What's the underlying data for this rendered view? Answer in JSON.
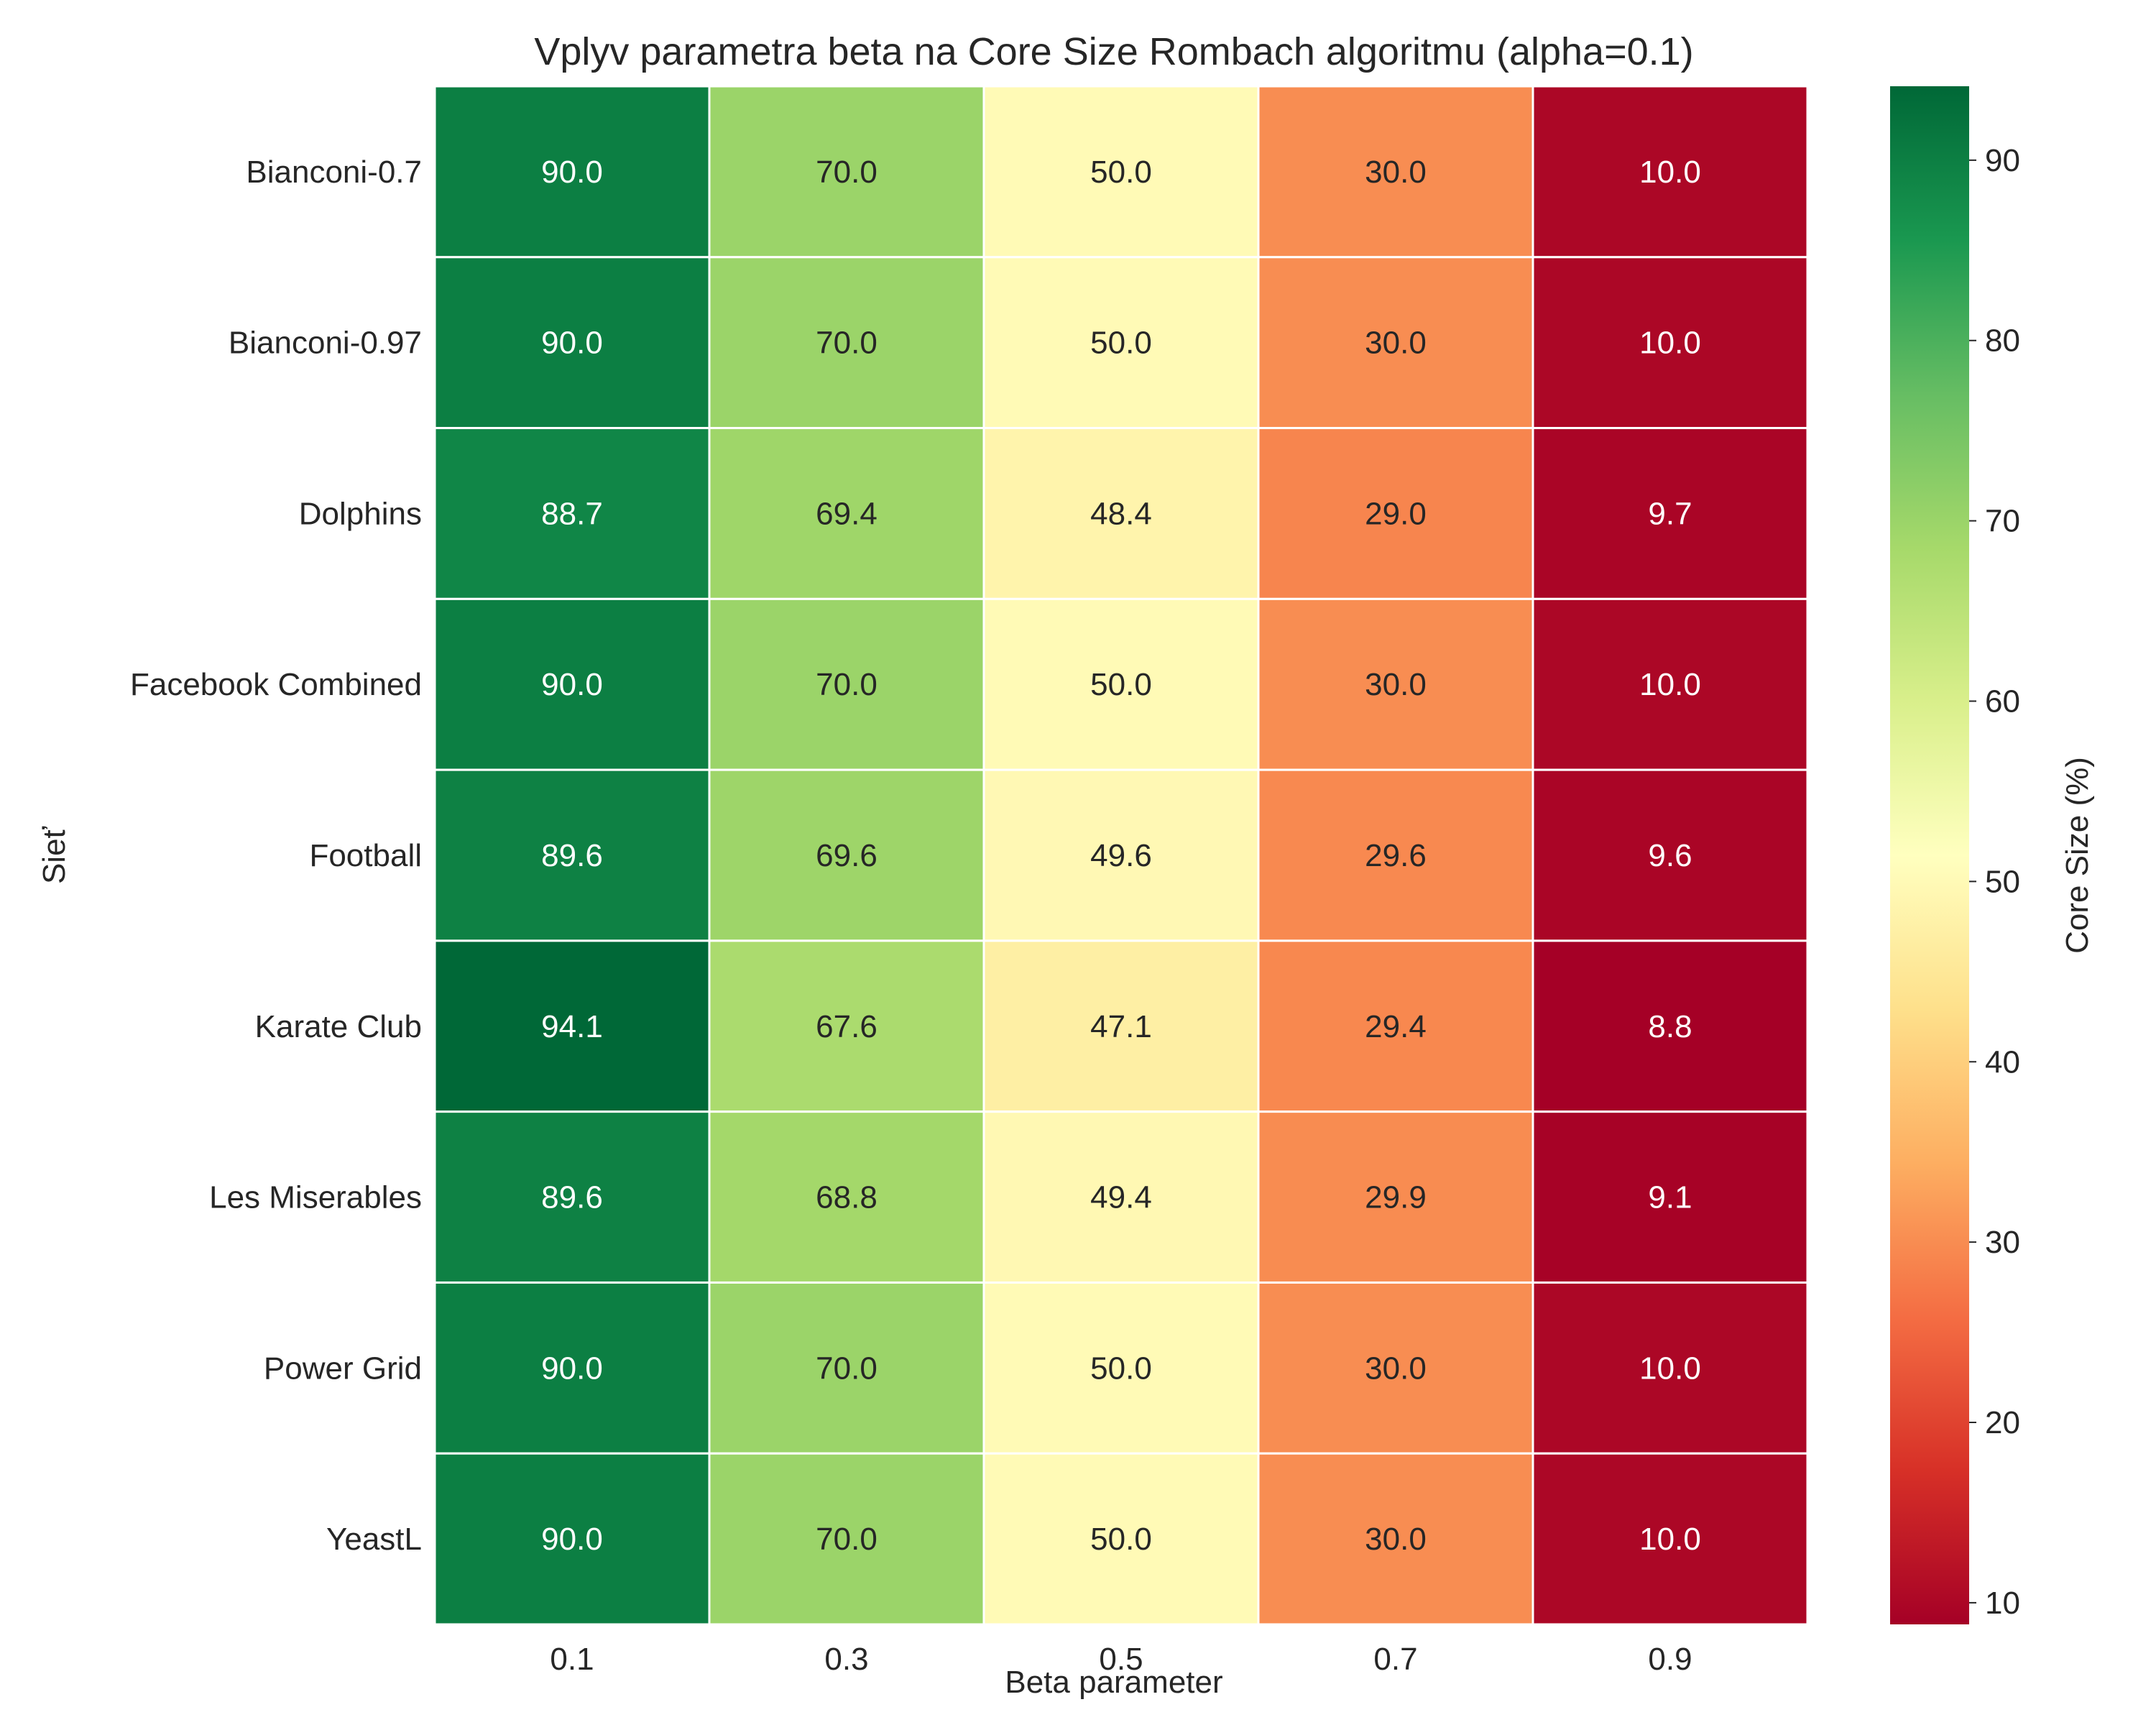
{
  "chart_data": {
    "type": "heatmap",
    "title": "Vplyv parametra beta na Core Size Rombach algoritmu (alpha=0.1)",
    "xlabel": "Beta parameter",
    "ylabel": "Sieť",
    "x_categories": [
      "0.1",
      "0.3",
      "0.5",
      "0.7",
      "0.9"
    ],
    "y_categories": [
      "Bianconi-0.7",
      "Bianconi-0.97",
      "Dolphins",
      "Facebook Combined",
      "Football",
      "Karate Club",
      "Les Miserables",
      "Power Grid",
      "YeastL"
    ],
    "values": [
      [
        90.0,
        70.0,
        50.0,
        30.0,
        10.0
      ],
      [
        90.0,
        70.0,
        50.0,
        30.0,
        10.0
      ],
      [
        88.7,
        69.4,
        48.4,
        29.0,
        9.7
      ],
      [
        90.0,
        70.0,
        50.0,
        30.0,
        10.0
      ],
      [
        89.6,
        69.6,
        49.6,
        29.6,
        9.6
      ],
      [
        94.1,
        67.6,
        47.1,
        29.4,
        8.8
      ],
      [
        89.6,
        68.8,
        49.4,
        29.9,
        9.1
      ],
      [
        90.0,
        70.0,
        50.0,
        30.0,
        10.0
      ],
      [
        90.0,
        70.0,
        50.0,
        30.0,
        10.0
      ]
    ],
    "value_format": "0.0",
    "colormap": "RdYlGn",
    "color_range": [
      8.8,
      94.1
    ],
    "colorbar": {
      "label": "Core Size (%)",
      "ticks": [
        10,
        20,
        30,
        40,
        50,
        60,
        70,
        80,
        90
      ]
    }
  }
}
